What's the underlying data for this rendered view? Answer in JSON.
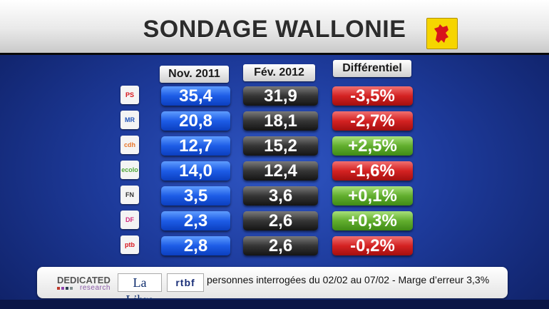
{
  "title": "SONDAGE WALLONIE",
  "columns": {
    "nov": "Nov. 2011",
    "fev": "Fév. 2012",
    "diff": "Différentiel"
  },
  "rows": [
    {
      "party_icon": "ps-logo-icon",
      "party_text": "PS",
      "nov": "35,4",
      "fev": "31,9",
      "diff": "-3,5%",
      "diff_type": "negative"
    },
    {
      "party_icon": "mr-logo-icon",
      "party_text": "MR",
      "nov": "20,8",
      "fev": "18,1",
      "diff": "-2,7%",
      "diff_type": "negative"
    },
    {
      "party_icon": "cdh-logo-icon",
      "party_text": "cdh",
      "nov": "12,7",
      "fev": "15,2",
      "diff": "+2,5%",
      "diff_type": "positive"
    },
    {
      "party_icon": "ecolo-logo-icon",
      "party_text": "ecolo",
      "nov": "14,0",
      "fev": "12,4",
      "diff": "-1,6%",
      "diff_type": "negative"
    },
    {
      "party_icon": "fn-logo-icon",
      "party_text": "FN",
      "nov": "3,5",
      "fev": "3,6",
      "diff": "+0,1%",
      "diff_type": "positive"
    },
    {
      "party_icon": "fdf-logo-icon",
      "party_text": "DF",
      "nov": "2,3",
      "fev": "2,6",
      "diff": "+0,3%",
      "diff_type": "positive"
    },
    {
      "party_icon": "ptb-logo-icon",
      "party_text": "ptb",
      "nov": "2,8",
      "fev": "2,6",
      "diff": "-0,2%",
      "diff_type": "negative"
    }
  ],
  "footer": {
    "dedicated": "DEDICATED",
    "research": "research",
    "lalibre": "La Libre",
    "rtbf": "rtbf",
    "text": "personnes interrogées du 02/02 au 07/02 - Marge d’erreur 3,3%"
  },
  "colors": {
    "positive": "#62ae2e",
    "negative": "#d42222",
    "nov_blue": "#1d5ce6",
    "fev_dark": "#353535",
    "background": "#1d3a9a",
    "flag_yellow": "#f6d500"
  }
}
